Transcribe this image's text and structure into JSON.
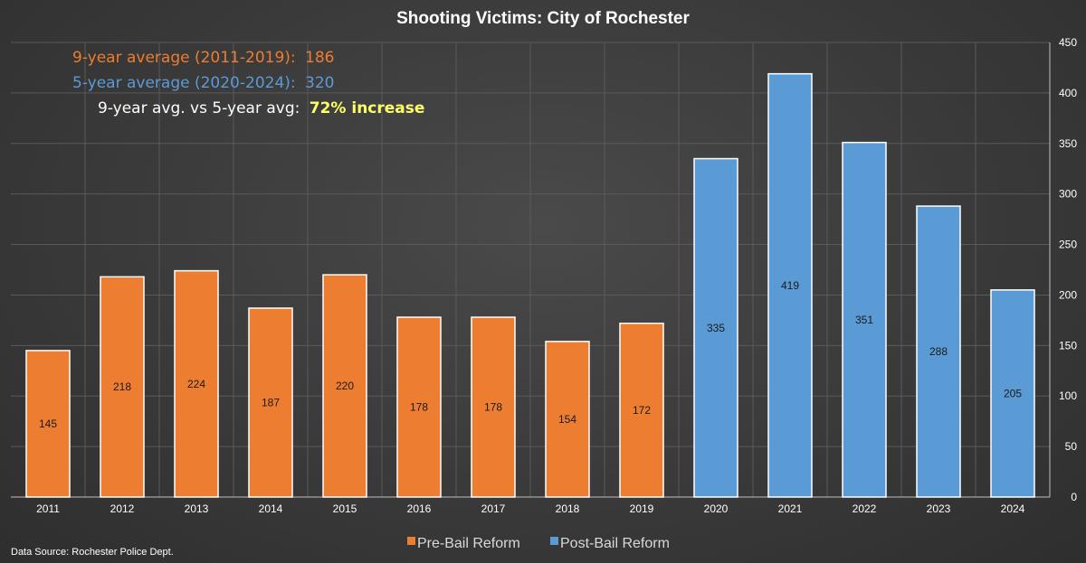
{
  "chart_data": {
    "type": "bar",
    "title": "Shooting Victims: City of Rochester",
    "categories": [
      "2011",
      "2012",
      "2013",
      "2014",
      "2015",
      "2016",
      "2017",
      "2018",
      "2019",
      "2020",
      "2021",
      "2022",
      "2023",
      "2024"
    ],
    "series": [
      {
        "name": "Pre-Bail Reform",
        "color": "#ed7d31",
        "values": [
          145,
          218,
          224,
          187,
          220,
          178,
          178,
          154,
          172,
          null,
          null,
          null,
          null,
          null
        ]
      },
      {
        "name": "Post-Bail Reform",
        "color": "#5b9bd5",
        "values": [
          null,
          null,
          null,
          null,
          null,
          null,
          null,
          null,
          null,
          335,
          419,
          351,
          288,
          205
        ]
      }
    ],
    "ylim": [
      0,
      450
    ],
    "yticks": [
      0,
      50,
      100,
      150,
      200,
      250,
      300,
      350,
      400,
      450
    ],
    "xlabel": "",
    "ylabel": "",
    "y_axis_side": "right",
    "grid": true,
    "legend_position": "bottom-center",
    "data_labels": true
  },
  "annotations": {
    "line1": {
      "label": "9-year average (2011-2019):",
      "value": "186",
      "color": "#ed7d31"
    },
    "line2": {
      "label": "5-year average (2020-2024):",
      "value": "320",
      "color": "#5b9bd5"
    },
    "line3": {
      "label": "9-year avg. vs 5-year avg:",
      "value": "72% increase",
      "label_color": "#ffffff",
      "value_color": "#ffff66"
    }
  },
  "source": "Data Source: Rochester Police Dept."
}
